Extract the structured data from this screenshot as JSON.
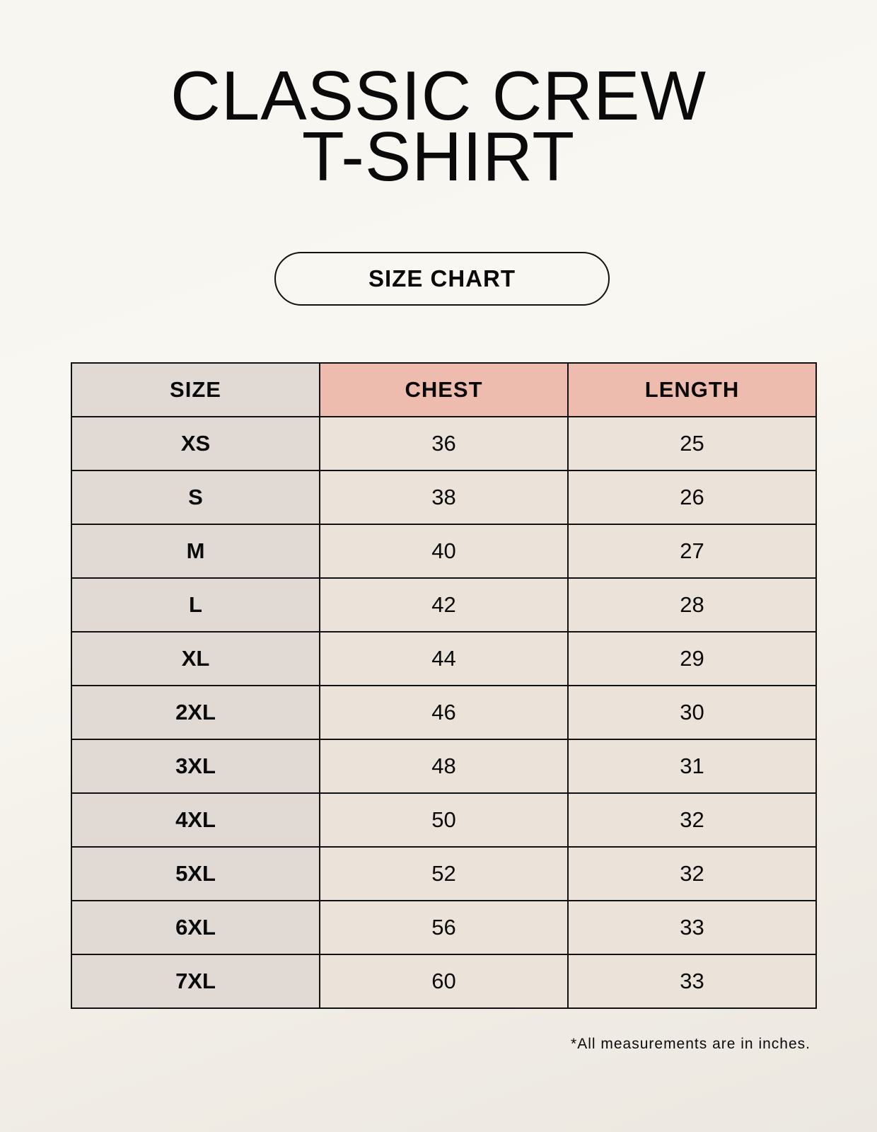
{
  "title": {
    "line1": "CLASSIC CREW",
    "line2": "T-SHIRT"
  },
  "badge": "SIZE CHART",
  "colors": {
    "size_column": "#e0d9d4",
    "header_accent": "#eebcaf",
    "cell": "#ebe3d9",
    "border": "#111111"
  },
  "table": {
    "headers": [
      "SIZE",
      "CHEST",
      "LENGTH"
    ],
    "rows": [
      [
        "XS",
        "36",
        "25"
      ],
      [
        "S",
        "38",
        "26"
      ],
      [
        "M",
        "40",
        "27"
      ],
      [
        "L",
        "42",
        "28"
      ],
      [
        "XL",
        "44",
        "29"
      ],
      [
        "2XL",
        "46",
        "30"
      ],
      [
        "3XL",
        "48",
        "31"
      ],
      [
        "4XL",
        "50",
        "32"
      ],
      [
        "5XL",
        "52",
        "32"
      ],
      [
        "6XL",
        "56",
        "33"
      ],
      [
        "7XL",
        "60",
        "33"
      ]
    ]
  },
  "footnote": "*All measurements are in inches."
}
